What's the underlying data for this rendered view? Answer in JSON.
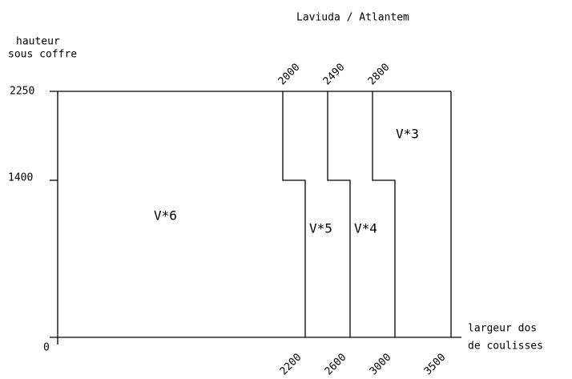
{
  "header": {
    "title": "Laviuda / Atlantem"
  },
  "y_axis": {
    "label": [
      "hauteur",
      "sous coffre"
    ],
    "ticks": [
      "2250",
      "1400",
      "0"
    ]
  },
  "x_axis": {
    "label": [
      "largeur dos",
      "de coulisses"
    ],
    "top_ticks": [
      "2000",
      "2490",
      "2800"
    ],
    "bottom_ticks": [
      "2200",
      "2600",
      "3000",
      "3500"
    ]
  },
  "regions": [
    "V*6",
    "V*5",
    "V*4",
    "V*3"
  ]
}
